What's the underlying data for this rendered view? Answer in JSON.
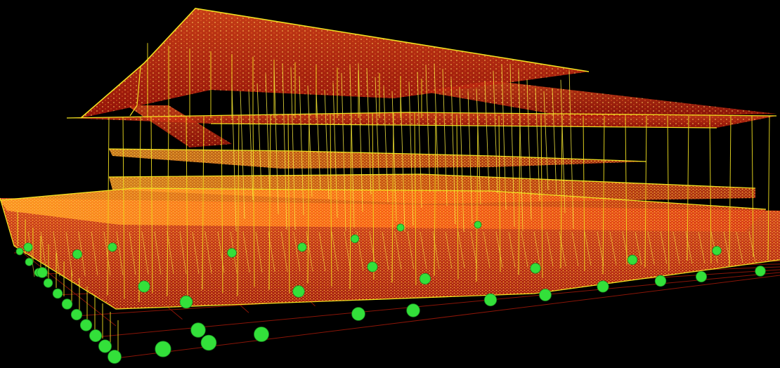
{
  "scene": {
    "subject": "structural-wireframe-model",
    "colors": {
      "background": "#000000",
      "slab": "#c81e0a",
      "slab_hot": "#ff8a10",
      "member": "#f0e020",
      "node": "#fff6a0",
      "support": "#33e03a",
      "ground_grid": "#8a1508"
    }
  }
}
